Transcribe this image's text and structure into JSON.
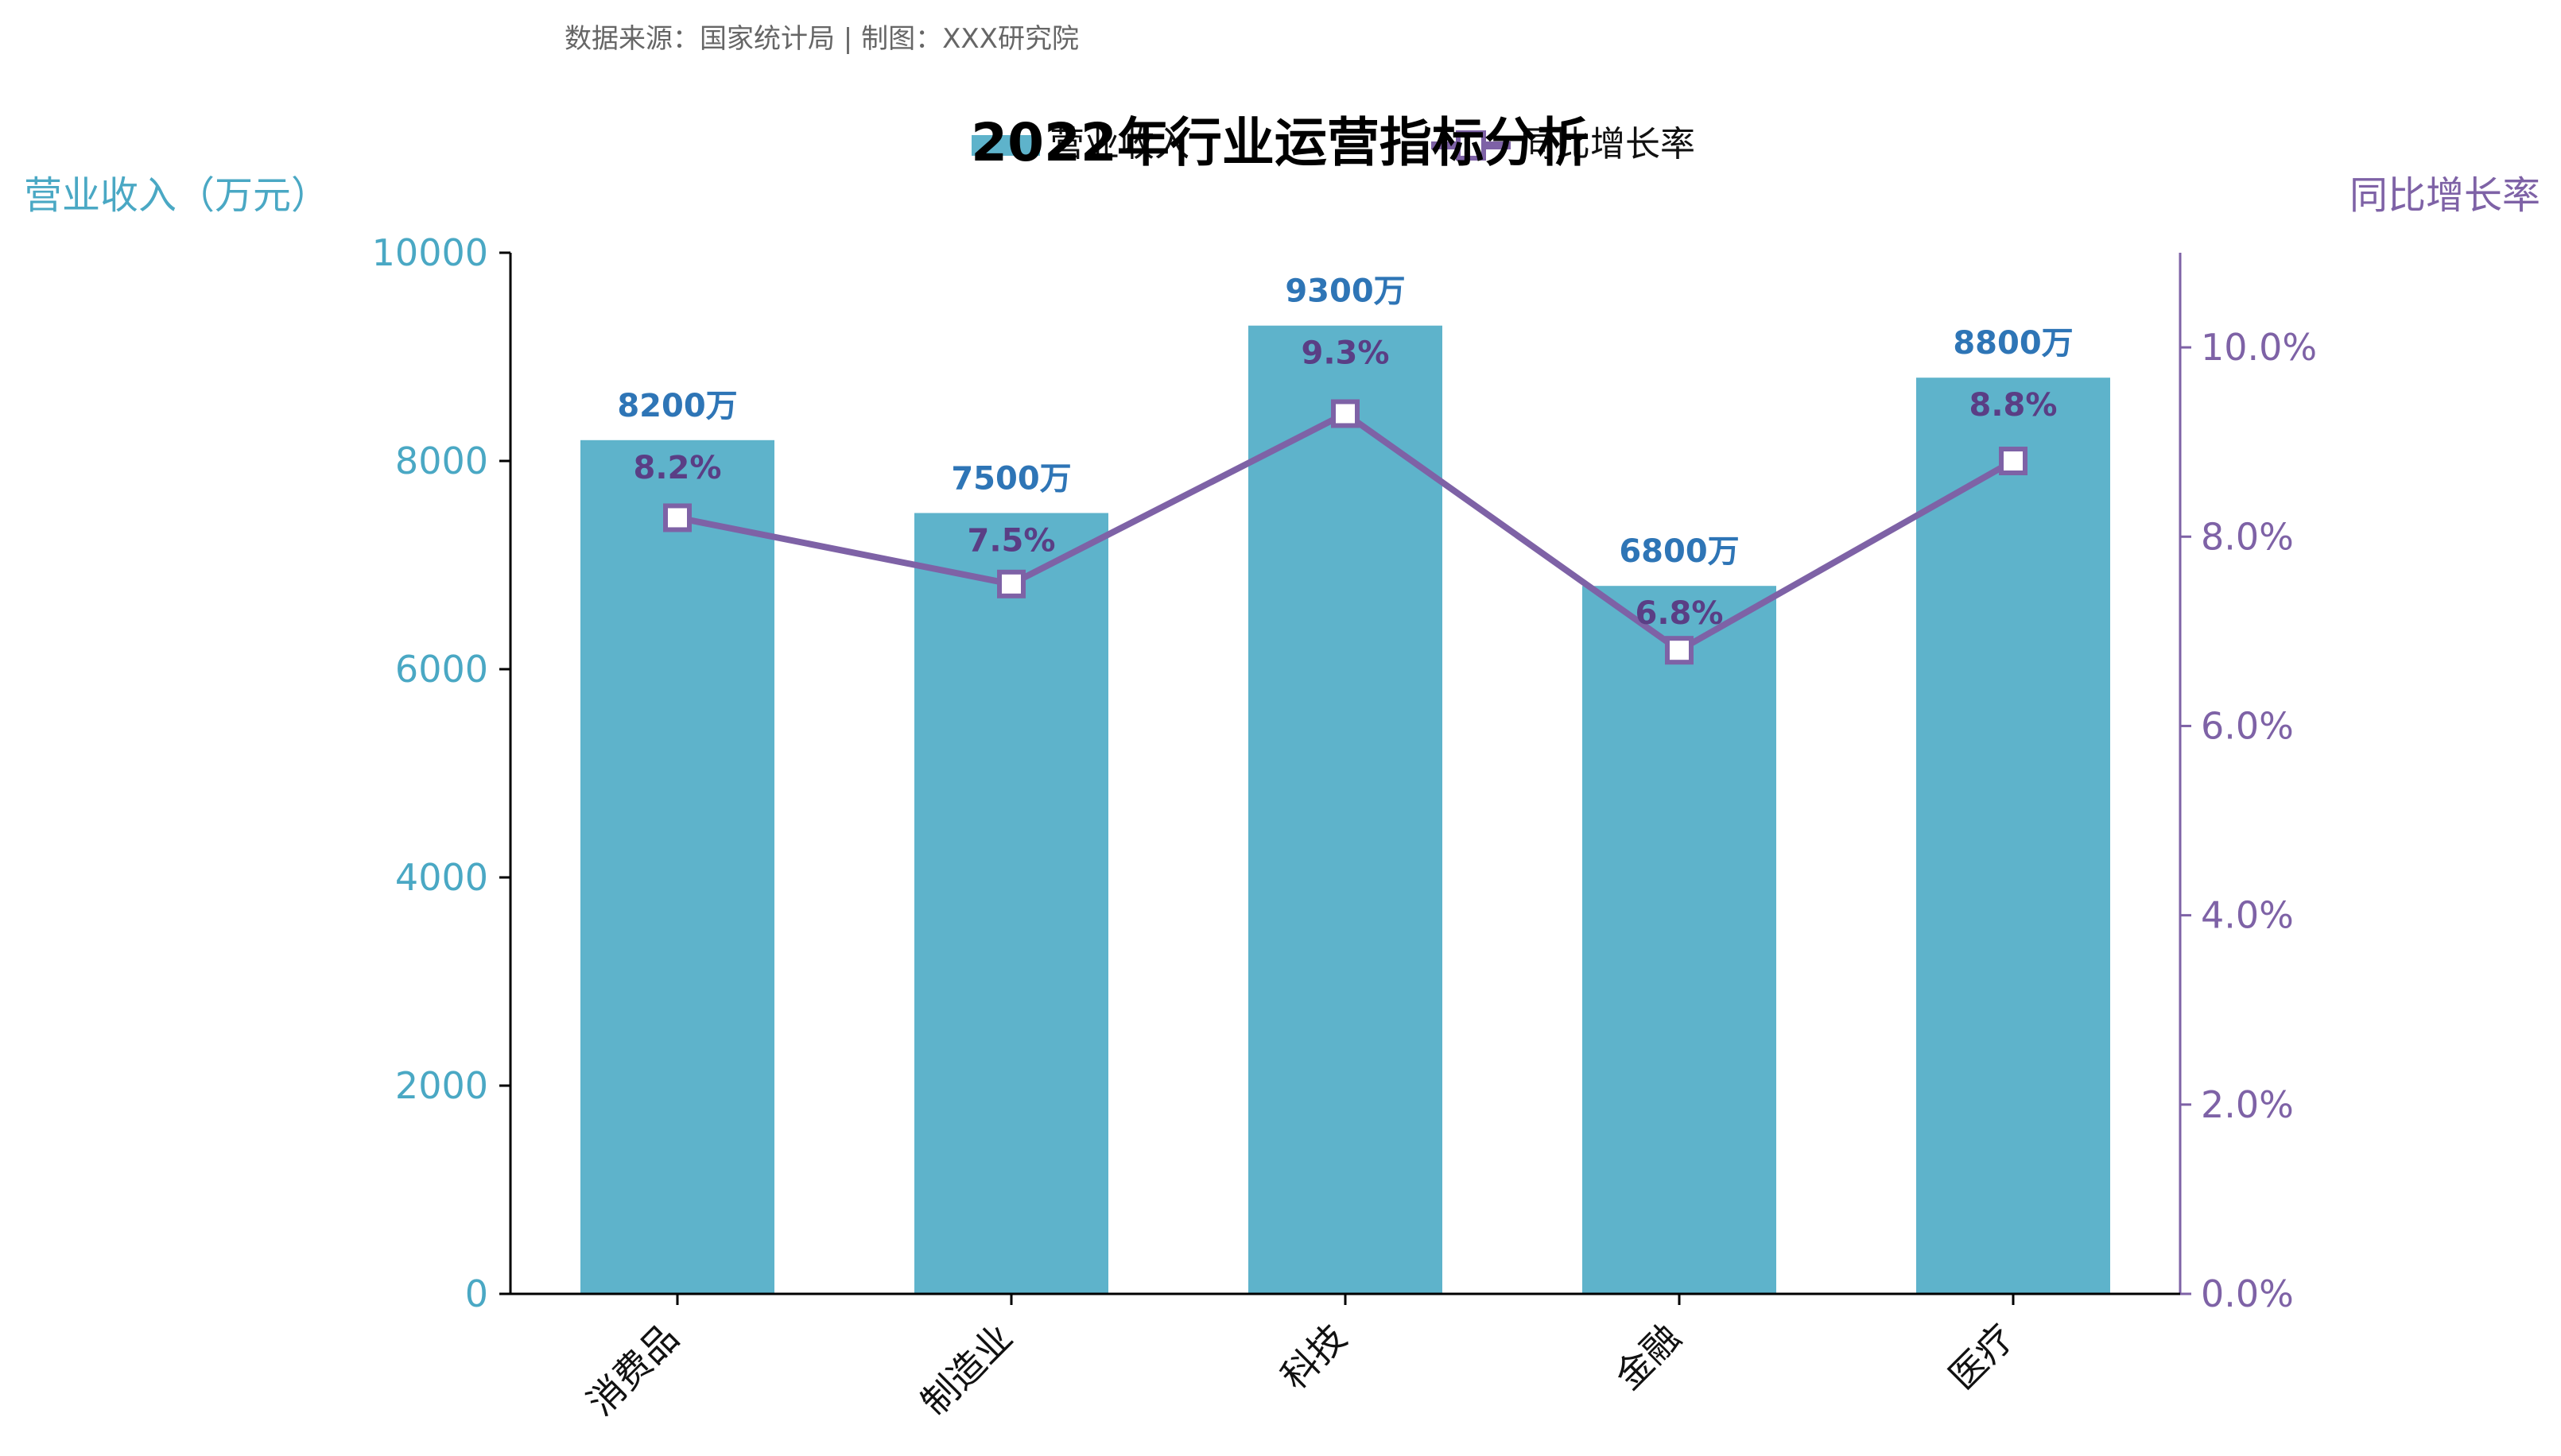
{
  "source_note": "数据来源：国家统计局 | 制图：XXX研究院",
  "colors": {
    "bar": "#5EB3CB",
    "line": "#7E62A6",
    "left_axis": "#4AA8C4",
    "right_axis": "#7E62A6",
    "bar_label": "#2E75B6",
    "line_label": "#5A3E85"
  },
  "chart_data": {
    "type": "bar",
    "title": "2022年行业运营指标分析",
    "categories": [
      "消费品",
      "制造业",
      "科技",
      "金融",
      "医疗"
    ],
    "series": [
      {
        "name": "营业收入",
        "type": "bar",
        "axis": "left",
        "values": [
          8200,
          7500,
          9300,
          6800,
          8800
        ],
        "data_labels": [
          "8200万",
          "7500万",
          "9300万",
          "6800万",
          "8800万"
        ]
      },
      {
        "name": "同比增长率",
        "type": "line",
        "axis": "right",
        "values": [
          8.2,
          7.5,
          9.3,
          6.8,
          8.8
        ],
        "data_labels": [
          "8.2%",
          "7.5%",
          "9.3%",
          "6.8%",
          "8.8%"
        ],
        "marker": "square"
      }
    ],
    "ylabel": "营业收入（万元）",
    "ylabel_right": "同比增长率",
    "ylim": [
      0,
      10000
    ],
    "ylim_right": [
      0,
      11
    ],
    "yticks": [
      0,
      2000,
      4000,
      6000,
      8000,
      10000
    ],
    "yticks_right": [
      "0.0%",
      "2.0%",
      "4.0%",
      "6.0%",
      "8.0%",
      "10.0%"
    ],
    "yticks_right_values": [
      0,
      2,
      4,
      6,
      8,
      10
    ],
    "grid": false,
    "legend_position": "top-center"
  }
}
